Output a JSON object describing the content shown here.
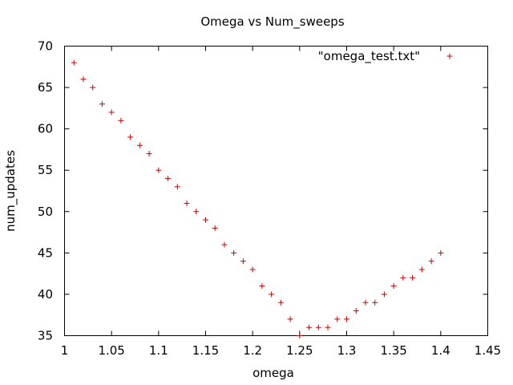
{
  "chart_data": {
    "type": "scatter",
    "title": "Omega vs Num_sweeps",
    "xlabel": "omega",
    "ylabel": "num_updates",
    "xlim": [
      1.0,
      1.45
    ],
    "ylim": [
      35,
      70
    ],
    "xticks": [
      1,
      1.05,
      1.1,
      1.15,
      1.2,
      1.25,
      1.3,
      1.35,
      1.4,
      1.45
    ],
    "xtick_labels": [
      "1",
      "1.05",
      "1.1",
      "1.15",
      "1.2",
      "1.25",
      "1.3",
      "1.35",
      "1.4",
      "1.45"
    ],
    "yticks": [
      35,
      40,
      45,
      50,
      55,
      60,
      65,
      70
    ],
    "ytick_labels": [
      "35",
      "40",
      "45",
      "50",
      "55",
      "60",
      "65",
      "70"
    ],
    "grid": false,
    "legend_position": "top-right",
    "marker_color": "#cc0000",
    "series": [
      {
        "name": "\"omega_test.txt\"",
        "marker": "plus",
        "x": [
          1.01,
          1.02,
          1.03,
          1.04,
          1.05,
          1.06,
          1.07,
          1.08,
          1.09,
          1.1,
          1.11,
          1.12,
          1.13,
          1.14,
          1.15,
          1.16,
          1.17,
          1.18,
          1.19,
          1.2,
          1.21,
          1.22,
          1.23,
          1.24,
          1.25,
          1.26,
          1.27,
          1.28,
          1.29,
          1.3,
          1.31,
          1.32,
          1.33,
          1.34,
          1.35,
          1.36,
          1.37,
          1.38,
          1.39,
          1.4
        ],
        "y": [
          68,
          66,
          65,
          63,
          62,
          61,
          59,
          58,
          57,
          55,
          54,
          53,
          51,
          50,
          49,
          48,
          46,
          45,
          44,
          43,
          41,
          40,
          39,
          37,
          35,
          36,
          36,
          36,
          37,
          37,
          38,
          39,
          39,
          40,
          41,
          42,
          42,
          43,
          44,
          45
        ]
      }
    ]
  }
}
